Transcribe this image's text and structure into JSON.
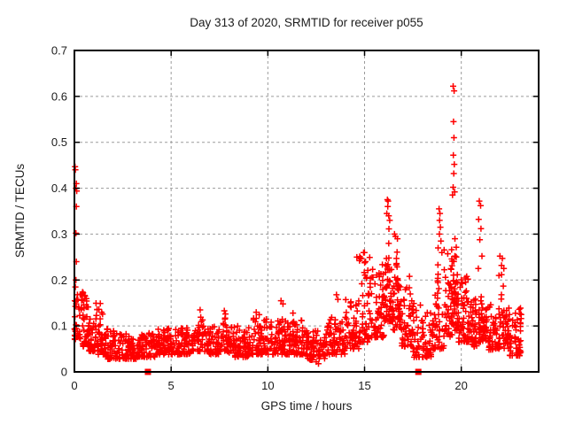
{
  "window": {
    "title": "Day 313 of 2020, SRMTID for receiver p055"
  },
  "chart_data": {
    "type": "scatter",
    "title": "Day 313 of 2020, SRMTID for receiver p055",
    "xlabel": "GPS time / hours",
    "ylabel": "SRMTID / TECUs",
    "xlim": [
      0,
      24
    ],
    "ylim": [
      0,
      0.7
    ],
    "xticks": [
      0,
      5,
      10,
      15,
      20
    ],
    "xtick_labels": [
      "0",
      "5",
      "10",
      "15",
      "20"
    ],
    "yticks": [
      0,
      0.1,
      0.2,
      0.3,
      0.4,
      0.5,
      0.6,
      0.7
    ],
    "ytick_labels": [
      "0",
      "0.1",
      "0.2",
      "0.3",
      "0.4",
      "0.5",
      "0.6",
      "0.7"
    ],
    "grid": "dashed-major-on",
    "legend": "none",
    "marker": {
      "shape": "plus",
      "color": "#ff0000",
      "size": 7
    },
    "grid_color": "#9b9b9b",
    "border_color": "#000000",
    "background": "#ffffff",
    "axis_markers": {
      "shape": "filled-square",
      "color": "#ff0000",
      "size": 7,
      "points": [
        [
          3.8,
          0
        ],
        [
          17.78,
          0
        ]
      ]
    },
    "notable_points": [
      [
        0.03,
        0.447
      ],
      [
        0.05,
        0.44
      ],
      [
        0.1,
        0.41
      ],
      [
        0.08,
        0.4
      ],
      [
        0.12,
        0.394
      ],
      [
        0.1,
        0.36
      ],
      [
        0.08,
        0.302
      ],
      [
        0.1,
        0.24
      ],
      [
        0.08,
        0.2
      ],
      [
        0.05,
        0.185
      ],
      [
        0.02,
        0.155
      ],
      [
        0.3,
        0.168
      ],
      [
        0.45,
        0.172
      ],
      [
        0.55,
        0.165
      ],
      [
        6.5,
        0.135
      ],
      [
        7.75,
        0.133
      ],
      [
        9.4,
        0.13
      ],
      [
        10.68,
        0.155
      ],
      [
        10.78,
        0.148
      ],
      [
        11.3,
        0.128
      ],
      [
        12.5,
        0.022
      ],
      [
        12.62,
        0.018
      ],
      [
        13.55,
        0.168
      ],
      [
        13.62,
        0.158
      ],
      [
        14.6,
        0.25
      ],
      [
        14.95,
        0.26
      ],
      [
        15.05,
        0.24
      ],
      [
        16.18,
        0.375
      ],
      [
        16.22,
        0.372
      ],
      [
        16.2,
        0.36
      ],
      [
        16.15,
        0.345
      ],
      [
        16.25,
        0.34
      ],
      [
        16.3,
        0.33
      ],
      [
        16.55,
        0.3
      ],
      [
        16.6,
        0.295
      ],
      [
        16.7,
        0.29
      ],
      [
        18.85,
        0.355
      ],
      [
        18.9,
        0.345
      ],
      [
        18.88,
        0.33
      ],
      [
        18.92,
        0.315
      ],
      [
        18.87,
        0.3
      ],
      [
        18.95,
        0.285
      ],
      [
        18.8,
        0.27
      ],
      [
        19.0,
        0.26
      ],
      [
        19.58,
        0.622
      ],
      [
        19.63,
        0.612
      ],
      [
        19.6,
        0.545
      ],
      [
        19.62,
        0.51
      ],
      [
        19.59,
        0.472
      ],
      [
        19.64,
        0.452
      ],
      [
        19.61,
        0.432
      ],
      [
        19.58,
        0.402
      ],
      [
        19.66,
        0.392
      ],
      [
        19.55,
        0.385
      ],
      [
        20.93,
        0.372
      ],
      [
        21.0,
        0.362
      ],
      [
        20.9,
        0.332
      ],
      [
        21.02,
        0.312
      ],
      [
        20.96,
        0.288
      ],
      [
        21.07,
        0.252
      ],
      [
        20.88,
        0.225
      ],
      [
        22.0,
        0.252
      ],
      [
        22.12,
        0.247
      ],
      [
        22.08,
        0.232
      ],
      [
        22.2,
        0.225
      ],
      [
        21.95,
        0.21
      ]
    ],
    "density_bands": [
      {
        "x0": 0.0,
        "x1": 0.35,
        "n": 30,
        "yMin": 0.07,
        "yMax": 0.17,
        "skew": 1.4
      },
      {
        "x0": 0.35,
        "x1": 0.75,
        "n": 42,
        "yMin": 0.055,
        "yMax": 0.175,
        "skew": 1.5
      },
      {
        "x0": 0.75,
        "x1": 1.1,
        "n": 30,
        "yMin": 0.045,
        "yMax": 0.12,
        "skew": 1.6
      },
      {
        "x0": 1.1,
        "x1": 1.5,
        "n": 36,
        "yMin": 0.038,
        "yMax": 0.15,
        "skew": 1.8
      },
      {
        "x0": 1.5,
        "x1": 2.2,
        "n": 58,
        "yMin": 0.028,
        "yMax": 0.1,
        "skew": 1.8
      },
      {
        "x0": 2.2,
        "x1": 3.2,
        "n": 75,
        "yMin": 0.028,
        "yMax": 0.085,
        "skew": 1.6
      },
      {
        "x0": 3.2,
        "x1": 4.2,
        "n": 75,
        "yMin": 0.032,
        "yMax": 0.085,
        "skew": 1.6
      },
      {
        "x0": 4.2,
        "x1": 5.2,
        "n": 75,
        "yMin": 0.038,
        "yMax": 0.095,
        "skew": 1.6
      },
      {
        "x0": 5.2,
        "x1": 6.1,
        "n": 62,
        "yMin": 0.038,
        "yMax": 0.1,
        "skew": 1.6
      },
      {
        "x0": 6.1,
        "x1": 6.9,
        "n": 58,
        "yMin": 0.045,
        "yMax": 0.135,
        "skew": 1.7,
        "shape": "peak"
      },
      {
        "x0": 6.9,
        "x1": 7.5,
        "n": 46,
        "yMin": 0.038,
        "yMax": 0.1,
        "skew": 1.6
      },
      {
        "x0": 7.5,
        "x1": 8.1,
        "n": 46,
        "yMin": 0.042,
        "yMax": 0.13,
        "skew": 1.7,
        "shape": "peak"
      },
      {
        "x0": 8.1,
        "x1": 9.0,
        "n": 68,
        "yMin": 0.032,
        "yMax": 0.1,
        "skew": 1.6
      },
      {
        "x0": 9.0,
        "x1": 10.0,
        "n": 74,
        "yMin": 0.038,
        "yMax": 0.125,
        "skew": 1.7
      },
      {
        "x0": 10.0,
        "x1": 11.0,
        "n": 74,
        "yMin": 0.038,
        "yMax": 0.12,
        "skew": 1.7
      },
      {
        "x0": 11.0,
        "x1": 12.0,
        "n": 74,
        "yMin": 0.038,
        "yMax": 0.115,
        "skew": 1.7
      },
      {
        "x0": 12.0,
        "x1": 13.0,
        "n": 72,
        "yMin": 0.026,
        "yMax": 0.09,
        "skew": 1.6
      },
      {
        "x0": 13.0,
        "x1": 14.0,
        "n": 68,
        "yMin": 0.038,
        "yMax": 0.12,
        "skew": 1.7
      },
      {
        "x0": 14.0,
        "x1": 14.7,
        "n": 52,
        "yMin": 0.05,
        "yMax": 0.16,
        "skew": 1.6
      },
      {
        "x0": 14.7,
        "x1": 15.3,
        "n": 52,
        "yMin": 0.065,
        "yMax": 0.26,
        "skew": 1.9
      },
      {
        "x0": 15.3,
        "x1": 16.0,
        "n": 62,
        "yMin": 0.075,
        "yMax": 0.24,
        "skew": 1.7
      },
      {
        "x0": 16.0,
        "x1": 16.45,
        "n": 58,
        "yMin": 0.11,
        "yMax": 0.38,
        "skew": 1.5,
        "shape": "peak"
      },
      {
        "x0": 16.45,
        "x1": 16.85,
        "n": 46,
        "yMin": 0.09,
        "yMax": 0.3,
        "skew": 1.6,
        "shape": "peak"
      },
      {
        "x0": 16.85,
        "x1": 17.5,
        "n": 52,
        "yMin": 0.055,
        "yMax": 0.21,
        "skew": 1.7
      },
      {
        "x0": 17.5,
        "x1": 18.5,
        "n": 72,
        "yMin": 0.032,
        "yMax": 0.15,
        "skew": 1.8
      },
      {
        "x0": 18.5,
        "x1": 19.1,
        "n": 52,
        "yMin": 0.05,
        "yMax": 0.24,
        "skew": 1.7,
        "shape": "peak"
      },
      {
        "x0": 19.1,
        "x1": 19.55,
        "n": 46,
        "yMin": 0.075,
        "yMax": 0.3,
        "skew": 1.7
      },
      {
        "x0": 19.55,
        "x1": 19.85,
        "n": 46,
        "yMin": 0.09,
        "yMax": 0.38,
        "skew": 1.6,
        "shape": "peak"
      },
      {
        "x0": 19.85,
        "x1": 20.4,
        "n": 52,
        "yMin": 0.065,
        "yMax": 0.21,
        "skew": 1.7
      },
      {
        "x0": 20.4,
        "x1": 20.85,
        "n": 42,
        "yMin": 0.055,
        "yMax": 0.16,
        "skew": 1.6
      },
      {
        "x0": 20.85,
        "x1": 21.25,
        "n": 42,
        "yMin": 0.065,
        "yMax": 0.2,
        "skew": 1.6,
        "shape": "peak"
      },
      {
        "x0": 21.25,
        "x1": 21.8,
        "n": 46,
        "yMin": 0.048,
        "yMax": 0.15,
        "skew": 1.6
      },
      {
        "x0": 21.8,
        "x1": 22.45,
        "n": 58,
        "yMin": 0.05,
        "yMax": 0.23,
        "skew": 1.8,
        "shape": "peak"
      },
      {
        "x0": 22.45,
        "x1": 23.1,
        "n": 56,
        "yMin": 0.035,
        "yMax": 0.14,
        "skew": 1.7
      }
    ],
    "seed": 20313
  }
}
